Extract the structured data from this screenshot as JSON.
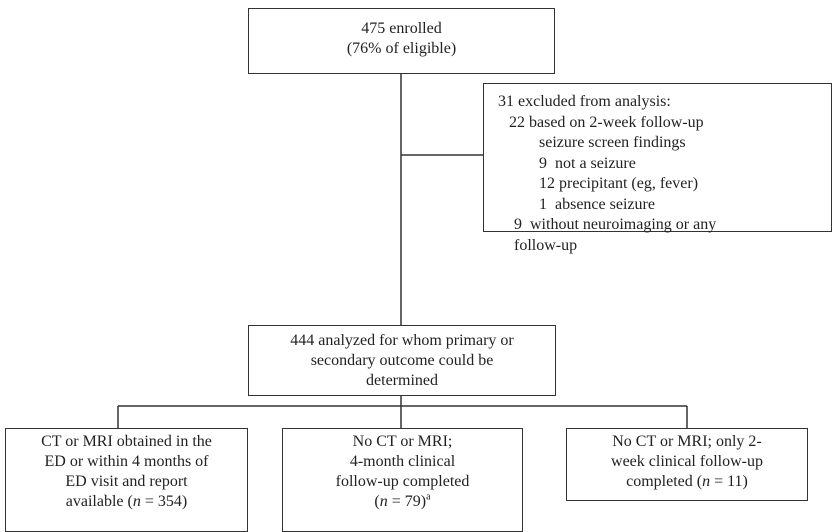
{
  "nodes": [
    {
      "lines": [
        "475 enrolled",
        "(76% of eligible)"
      ]
    },
    {
      "lines": [
        "31 excluded from analysis:",
        "22 based on 2-week follow-up",
        "seizure screen findings",
        "9  not a seizure",
        "12 precipitant (eg, fever)",
        "1  absence seizure",
        "9  without neuroimaging or any",
        "follow-up"
      ]
    },
    {
      "lines": [
        "444 analyzed for whom primary or",
        "secondary outcome could be",
        "determined"
      ]
    },
    {
      "lines": [
        "CT or MRI obtained in the",
        "ED or within 4 months of",
        "ED visit and report",
        [
          "available (",
          "n",
          " = 354)"
        ]
      ]
    },
    {
      "lines": [
        "No CT or MRI;",
        "4-month clinical",
        "follow-up completed",
        [
          "(",
          "n",
          " = 79)",
          "a"
        ]
      ]
    },
    {
      "lines": [
        "No CT or MRI; only 2-",
        "week clinical follow-up",
        [
          "completed (",
          "n",
          " = 11)"
        ]
      ]
    }
  ]
}
